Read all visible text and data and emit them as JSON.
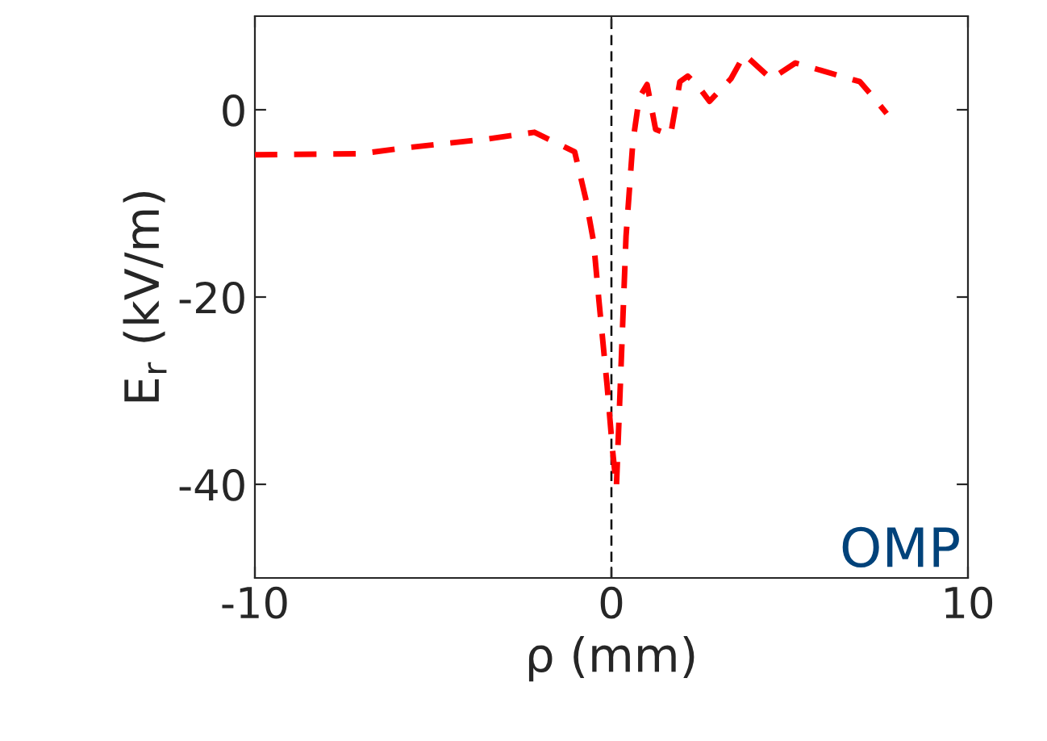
{
  "chart_data": {
    "type": "line",
    "xlabel": "ρ (mm)",
    "ylabel": "E$_{r}$ (kV/m)",
    "x": [
      -10,
      -7.06,
      -5.85,
      -3.44,
      -2.16,
      -1.03,
      -0.72,
      -0.5,
      -0.35,
      -0.12,
      0.03,
      0.14,
      0.26,
      0.41,
      0.6,
      0.78,
      1.0,
      1.24,
      1.66,
      1.92,
      2.14,
      2.44,
      2.75,
      3.35,
      3.73,
      4.48,
      5.16,
      6.97,
      7.42,
      7.72
    ],
    "series": [
      {
        "color": "#ff0000",
        "values": [
          -4.8,
          -4.7,
          -4.1,
          -3.1,
          -2.4,
          -4.5,
          -9.5,
          -14.1,
          -20.4,
          -29.5,
          -36.3,
          -40.3,
          -28.4,
          -13.5,
          -3.5,
          1.3,
          2.7,
          -2.1,
          -2.7,
          3.0,
          3.6,
          2.5,
          0.9,
          3.3,
          5.9,
          3.3,
          5.0,
          3.0,
          1.0,
          -0.4
        ]
      }
    ],
    "line_style": "dashed",
    "marker": "none",
    "grid": false,
    "legend": false,
    "xlim": [
      -10,
      10
    ],
    "xticks": [
      -10,
      0,
      10
    ],
    "ylim": [
      -50,
      10
    ],
    "yticks": [
      -40,
      -20,
      0
    ],
    "ref_lines": [
      {
        "axis": "x",
        "value": 0,
        "color": "#000000",
        "line_style": "dashed"
      }
    ],
    "annotations": [
      "OMP"
    ]
  }
}
